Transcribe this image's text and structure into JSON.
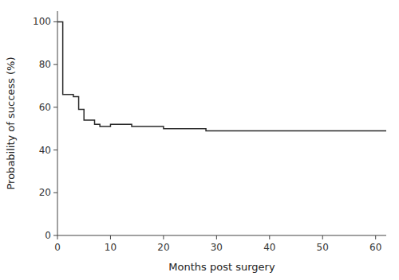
{
  "chart_data": {
    "type": "line",
    "x": [
      0,
      1,
      1,
      3,
      3,
      4,
      4,
      5,
      5,
      7,
      7,
      8,
      8,
      10,
      10,
      14,
      14,
      20,
      20,
      28,
      28,
      30,
      30,
      62
    ],
    "values": [
      100,
      100,
      66,
      66,
      65,
      65,
      59,
      59,
      54,
      54,
      52,
      52,
      51,
      51,
      52,
      52,
      51,
      51,
      50,
      50,
      49,
      49,
      49,
      49
    ],
    "color": "#2a2a2a",
    "xlabel": "Months post surgery",
    "ylabel": "Probability of success (%)",
    "xlim": [
      0,
      62
    ],
    "ylim": [
      0,
      105
    ],
    "xticks": [
      0,
      10,
      20,
      30,
      40,
      50,
      60
    ],
    "yticks": [
      0,
      20,
      40,
      60,
      80,
      100
    ],
    "grid": false
  }
}
